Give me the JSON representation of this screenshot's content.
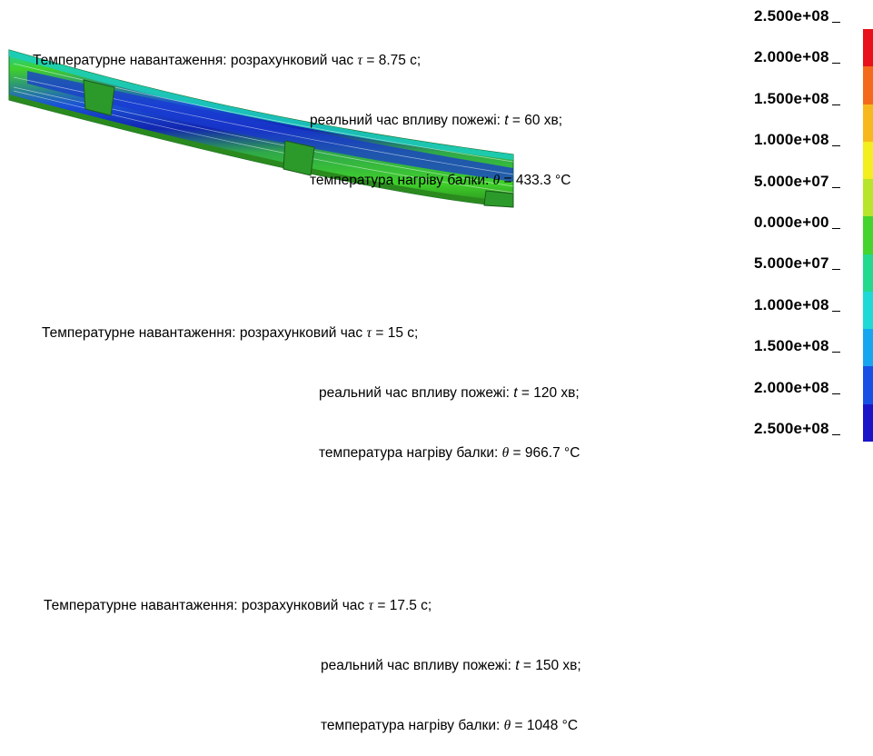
{
  "captions": [
    {
      "line1_prefix": "Температурне навантаження: розрахунковий час ",
      "tau_symbol": "τ",
      "line1_suffix": " = 8.75 с;",
      "line2_prefix": "реальний час впливу пожежі: ",
      "t_symbol": "t",
      "line2_suffix": " = 60 хв;",
      "line3_prefix": "температура нагріву балки: ",
      "theta_symbol": "θ",
      "line3_suffix": " = 433.3 °C"
    },
    {
      "line1_prefix": "Температурне навантаження: розрахунковий час ",
      "tau_symbol": "τ",
      "line1_suffix": " = 15 с;",
      "line2_prefix": "реальний час впливу пожежі: ",
      "t_symbol": "t",
      "line2_suffix": " = 120 хв;",
      "line3_prefix": "температура нагріву балки: ",
      "theta_symbol": "θ",
      "line3_suffix": " = 966.7 °C"
    },
    {
      "line1_prefix": "Температурне навантаження: розрахунковий час ",
      "tau_symbol": "τ",
      "line1_suffix": " = 17.5 с;",
      "line2_prefix": "реальний час впливу пожежі: ",
      "t_symbol": "t",
      "line2_suffix": " = 150 хв;",
      "line3_prefix": "температура нагріву балки: ",
      "theta_symbol": "θ",
      "line3_suffix": " = 1048 °C"
    }
  ],
  "legend": {
    "labels": [
      "2.500e+08",
      "2.000e+08",
      "1.500e+08",
      "1.000e+08",
      "5.000e+07",
      "0.000e+00",
      "5.000e+07",
      "1.000e+08",
      "1.500e+08",
      "2.000e+08",
      "2.500e+08"
    ],
    "colors": [
      "#e8101a",
      "#f46a1c",
      "#f7b81e",
      "#f3ee1d",
      "#b7e52c",
      "#43d52d",
      "#23d98e",
      "#1ed9d6",
      "#18a5ef",
      "#1950e4",
      "#1a16c8"
    ]
  },
  "beam_colors": {
    "outer": "#1ccdb8",
    "green": "#3fd02a",
    "dark_green": "#2a8a1e",
    "blue": "#1a52d6",
    "deep_blue": "#1226b0",
    "stiffener": "#2c9a2a"
  }
}
